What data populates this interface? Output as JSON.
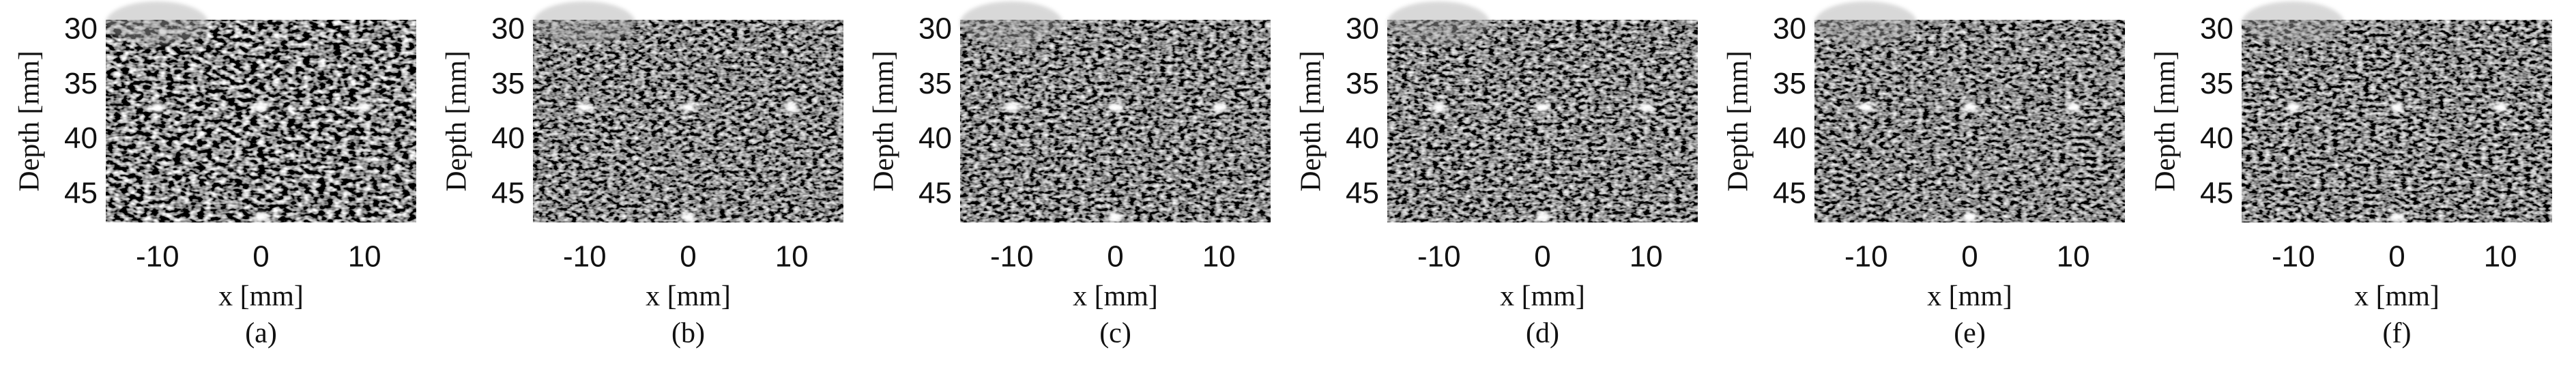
{
  "panels": [
    {
      "caption": "(a)",
      "xlabel": "x [mm]",
      "ylabel": "Depth [mm]",
      "xlim": [
        -15,
        15
      ],
      "ylim": [
        29,
        47.5
      ],
      "xticks": [
        -10,
        0,
        10
      ],
      "yticks": [
        30,
        35,
        40,
        45
      ]
    },
    {
      "caption": "(b)",
      "xlabel": "x [mm]",
      "ylabel": "Depth [mm]",
      "xlim": [
        -15,
        15
      ],
      "ylim": [
        29,
        47.5
      ],
      "xticks": [
        -10,
        0,
        10
      ],
      "yticks": [
        30,
        35,
        40,
        45
      ]
    },
    {
      "caption": "(c)",
      "xlabel": "x [mm]",
      "ylabel": "Depth [mm]",
      "xlim": [
        -15,
        15
      ],
      "ylim": [
        29,
        47.5
      ],
      "xticks": [
        -10,
        0,
        10
      ],
      "yticks": [
        30,
        35,
        40,
        45
      ]
    },
    {
      "caption": "(d)",
      "xlabel": "x [mm]",
      "ylabel": "Depth [mm]",
      "xlim": [
        -15,
        15
      ],
      "ylim": [
        29,
        47.5
      ],
      "xticks": [
        -10,
        0,
        10
      ],
      "yticks": [
        30,
        35,
        40,
        45
      ]
    },
    {
      "caption": "(e)",
      "xlabel": "x [mm]",
      "ylabel": "Depth [mm]",
      "xlim": [
        -15,
        15
      ],
      "ylim": [
        29,
        47.5
      ],
      "xticks": [
        -10,
        0,
        10
      ],
      "yticks": [
        30,
        35,
        40,
        45
      ]
    },
    {
      "caption": "(f)",
      "xlabel": "x [mm]",
      "ylabel": "Depth [mm]",
      "xlim": [
        -15,
        15
      ],
      "ylim": [
        29,
        47.5
      ],
      "xticks": [
        -10,
        0,
        10
      ],
      "yticks": [
        30,
        35,
        40,
        45
      ]
    }
  ],
  "targets": {
    "x": [
      -10,
      0,
      10,
      0
    ],
    "depth": [
      37,
      37,
      37,
      47
    ]
  }
}
